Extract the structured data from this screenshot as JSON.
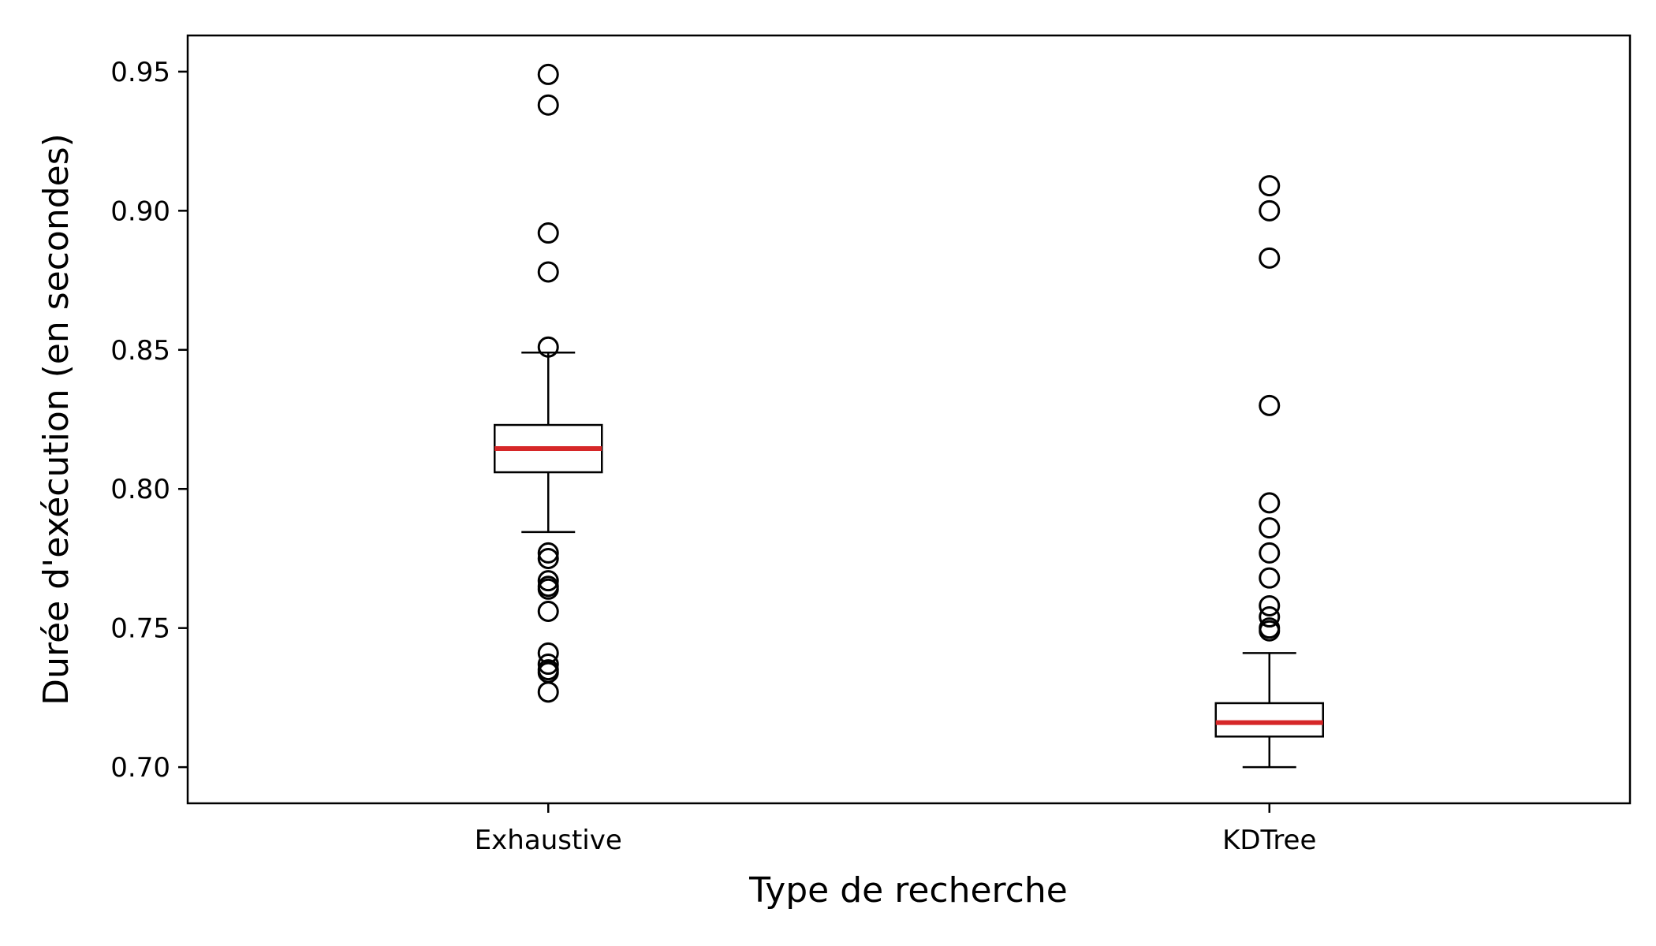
{
  "chart_data": {
    "type": "boxplot",
    "title": "",
    "xlabel": "Type de recherche",
    "ylabel": "Durée d'exécution (en secondes)",
    "ylim": [
      0.687,
      0.963
    ],
    "yticks": [
      "0.70",
      "0.75",
      "0.80",
      "0.85",
      "0.90",
      "0.95"
    ],
    "grid": false,
    "categories": [
      "Exhaustive",
      "KDTree"
    ],
    "boxes": [
      {
        "category": "Exhaustive",
        "whisker_low": 0.7845,
        "q1": 0.806,
        "median": 0.8145,
        "q3": 0.823,
        "whisker_high": 0.849,
        "outliers": [
          0.949,
          0.938,
          0.892,
          0.878,
          0.851,
          0.777,
          0.775,
          0.767,
          0.765,
          0.764,
          0.756,
          0.741,
          0.737,
          0.735,
          0.734,
          0.727
        ]
      },
      {
        "category": "KDTree",
        "whisker_low": 0.7,
        "q1": 0.711,
        "median": 0.716,
        "q3": 0.723,
        "whisker_high": 0.741,
        "outliers": [
          0.909,
          0.9,
          0.883,
          0.83,
          0.795,
          0.786,
          0.777,
          0.768,
          0.758,
          0.754,
          0.75,
          0.749
        ]
      }
    ],
    "colors": {
      "box": "#000000",
      "median": "#d62728",
      "outlier": "#000000"
    }
  }
}
